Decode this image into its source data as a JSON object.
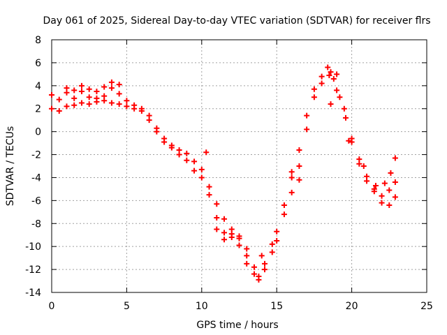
{
  "chart_data": {
    "type": "scatter",
    "title": "Day 061 of 2025, Sidereal Day-to-day VTEC variation (SDTVAR) for receiver flrs",
    "xlabel": "GPS time / hours",
    "ylabel": "SDTVAR / TECUs",
    "xlim": [
      0,
      25
    ],
    "ylim": [
      -14,
      8
    ],
    "xticks": [
      "0",
      "5",
      "10",
      "15",
      "20",
      "25"
    ],
    "yticks": [
      "8",
      "6",
      "4",
      "2",
      "0",
      "-2",
      "-4",
      "-6",
      "-8",
      "-10",
      "-12",
      "-14"
    ],
    "grid": true,
    "marker": "+",
    "series_color": "#ff0000",
    "series": [
      {
        "name": "SDTVAR",
        "points": [
          [
            0.0,
            3.2
          ],
          [
            0.5,
            2.8
          ],
          [
            1.0,
            3.4
          ],
          [
            1.5,
            3.6
          ],
          [
            2.0,
            3.5
          ],
          [
            2.5,
            3.7
          ],
          [
            3.0,
            3.5
          ],
          [
            3.5,
            3.9
          ],
          [
            4.0,
            3.8
          ],
          [
            4.5,
            3.3
          ],
          [
            5.0,
            2.7
          ],
          [
            5.5,
            2.3
          ],
          [
            6.0,
            2.0
          ],
          [
            6.5,
            1.4
          ],
          [
            7.0,
            0.3
          ],
          [
            7.5,
            -0.6
          ],
          [
            8.0,
            -1.2
          ],
          [
            8.5,
            -1.6
          ],
          [
            9.0,
            -1.9
          ],
          [
            9.5,
            -2.6
          ],
          [
            10.0,
            -3.3
          ],
          [
            10.5,
            -4.8
          ],
          [
            11.0,
            -6.3
          ],
          [
            11.5,
            -7.6
          ],
          [
            12.0,
            -8.5
          ],
          [
            12.5,
            -9.3
          ],
          [
            13.0,
            -10.2
          ],
          [
            13.5,
            -11.8
          ],
          [
            13.8,
            -12.6
          ],
          [
            14.2,
            -11.5
          ],
          [
            14.7,
            -9.8
          ],
          [
            15.0,
            -8.7
          ],
          [
            15.5,
            -6.4
          ],
          [
            16.0,
            -4.0
          ],
          [
            16.5,
            -1.6
          ],
          [
            17.0,
            1.4
          ],
          [
            17.5,
            3.7
          ],
          [
            18.0,
            4.8
          ],
          [
            18.4,
            5.6
          ],
          [
            18.8,
            4.6
          ],
          [
            19.2,
            3.0
          ],
          [
            19.6,
            1.2
          ],
          [
            20.0,
            -0.6
          ],
          [
            20.5,
            -2.8
          ],
          [
            21.0,
            -4.3
          ],
          [
            21.5,
            -5.2
          ],
          [
            22.0,
            -5.6
          ],
          [
            22.5,
            -5.1
          ],
          [
            22.9,
            -4.4
          ],
          [
            0.0,
            2.0
          ],
          [
            0.5,
            1.8
          ],
          [
            1.0,
            2.2
          ],
          [
            1.5,
            2.3
          ],
          [
            2.0,
            2.5
          ],
          [
            2.5,
            2.4
          ],
          [
            3.0,
            2.6
          ],
          [
            3.5,
            2.7
          ],
          [
            4.0,
            2.5
          ],
          [
            4.5,
            2.4
          ],
          [
            5.0,
            2.2
          ],
          [
            5.5,
            2.0
          ],
          [
            6.0,
            1.8
          ],
          [
            6.5,
            1.0
          ],
          [
            7.0,
            0.0
          ],
          [
            7.5,
            -0.9
          ],
          [
            8.0,
            -1.4
          ],
          [
            8.5,
            -2.0
          ],
          [
            9.0,
            -2.5
          ],
          [
            9.5,
            -3.4
          ],
          [
            10.0,
            -4.0
          ],
          [
            10.5,
            -5.5
          ],
          [
            11.0,
            -7.5
          ],
          [
            11.5,
            -8.8
          ],
          [
            12.0,
            -9.2
          ],
          [
            12.5,
            -9.9
          ],
          [
            13.0,
            -10.8
          ],
          [
            13.5,
            -12.4
          ],
          [
            13.8,
            -12.9
          ],
          [
            14.2,
            -12.0
          ],
          [
            14.7,
            -10.5
          ],
          [
            15.0,
            -9.5
          ],
          [
            15.5,
            -7.2
          ],
          [
            16.0,
            -5.3
          ],
          [
            16.5,
            -3.0
          ],
          [
            17.0,
            0.2
          ],
          [
            17.5,
            3.0
          ],
          [
            18.0,
            4.2
          ],
          [
            18.5,
            4.9
          ],
          [
            19.0,
            3.6
          ],
          [
            19.5,
            2.0
          ],
          [
            20.0,
            -0.9
          ],
          [
            20.5,
            -2.4
          ],
          [
            21.0,
            -3.9
          ],
          [
            21.5,
            -5.0
          ],
          [
            22.0,
            -6.2
          ],
          [
            22.5,
            -6.4
          ],
          [
            22.9,
            -5.7
          ],
          [
            1.0,
            3.8
          ],
          [
            1.5,
            2.9
          ],
          [
            2.0,
            4.0
          ],
          [
            2.5,
            3.0
          ],
          [
            3.0,
            2.9
          ],
          [
            3.5,
            3.1
          ],
          [
            4.0,
            4.3
          ],
          [
            4.5,
            4.1
          ],
          [
            11.0,
            -8.5
          ],
          [
            11.5,
            -9.4
          ],
          [
            12.0,
            -8.9
          ],
          [
            12.5,
            -9.1
          ],
          [
            13.0,
            -11.5
          ],
          [
            14.0,
            -10.8
          ],
          [
            16.0,
            -3.5
          ],
          [
            16.5,
            -4.2
          ],
          [
            18.6,
            5.2
          ],
          [
            19.0,
            5.0
          ],
          [
            18.6,
            2.4
          ],
          [
            19.8,
            -0.8
          ],
          [
            20.8,
            -3.0
          ],
          [
            21.6,
            -4.7
          ],
          [
            22.2,
            -4.5
          ],
          [
            22.6,
            -3.6
          ],
          [
            22.9,
            -2.3
          ],
          [
            10.3,
            -1.8
          ]
        ]
      }
    ]
  }
}
